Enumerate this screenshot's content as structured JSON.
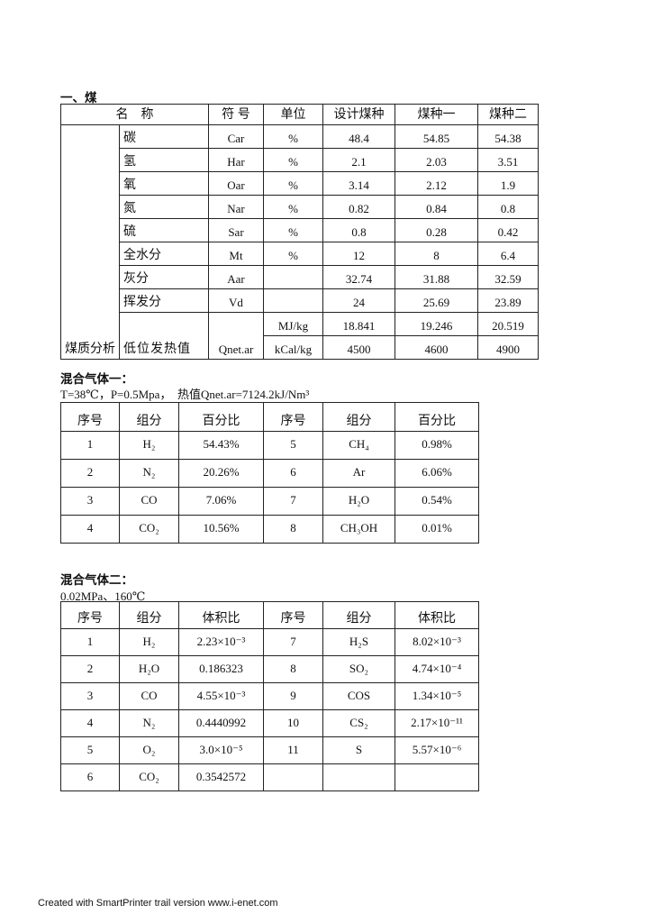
{
  "coal": {
    "section_title": "一、煤",
    "headers": [
      "名　称",
      "符 号",
      "单位",
      "设计煤种",
      "煤种一",
      "煤种二"
    ],
    "group_label": "煤质分析",
    "rows": [
      {
        "name": "碳",
        "symbol": "Car",
        "unit": "%",
        "design": "48.4",
        "coal1": "54.85",
        "coal2": "54.38"
      },
      {
        "name": "氢",
        "symbol": "Har",
        "unit": "%",
        "design": "2.1",
        "coal1": "2.03",
        "coal2": "3.51"
      },
      {
        "name": "氧",
        "symbol": "Oar",
        "unit": "%",
        "design": "3.14",
        "coal1": "2.12",
        "coal2": "1.9"
      },
      {
        "name": "氮",
        "symbol": "Nar",
        "unit": "%",
        "design": "0.82",
        "coal1": "0.84",
        "coal2": "0.8"
      },
      {
        "name": "硫",
        "symbol": "Sar",
        "unit": "%",
        "design": "0.8",
        "coal1": "0.28",
        "coal2": "0.42"
      },
      {
        "name": "全水分",
        "symbol": "Mt",
        "unit": "%",
        "design": "12",
        "coal1": "8",
        "coal2": "6.4"
      },
      {
        "name": "灰分",
        "symbol": "Aar",
        "unit": "",
        "design": "32.74",
        "coal1": "31.88",
        "coal2": "32.59"
      },
      {
        "name": "挥发分",
        "symbol": "Vd",
        "unit": "",
        "design": "24",
        "coal1": "25.69",
        "coal2": "23.89"
      }
    ],
    "heat": {
      "name": "低位发热值",
      "symbol": "Qnet.ar",
      "rows": [
        {
          "unit": "MJ/kg",
          "design": "18.841",
          "coal1": "19.246",
          "coal2": "20.519"
        },
        {
          "unit": "kCal/kg",
          "design": "4500",
          "coal1": "4600",
          "coal2": "4900"
        }
      ]
    }
  },
  "gas1": {
    "title": "混合气体一：",
    "conditions": "T=38℃，P=0.5Mpa，　热值Qnet.ar=7124.2kJ/Nm³",
    "headers": [
      "序号",
      "组分",
      "百分比",
      "序号",
      "组分",
      "百分比"
    ],
    "rows": [
      [
        "1",
        "H₂",
        "54.43%",
        "5",
        "CH₄",
        "0.98%"
      ],
      [
        "2",
        "N₂",
        "20.26%",
        "6",
        "Ar",
        "6.06%"
      ],
      [
        "3",
        "CO",
        "7.06%",
        "7",
        "H₂O",
        "0.54%"
      ],
      [
        "4",
        "CO₂",
        "10.56%",
        "8",
        "CH₃OH",
        "0.01%"
      ]
    ]
  },
  "gas2": {
    "title": "混合气体二：",
    "conditions": "0.02MPa、160℃",
    "headers": [
      "序号",
      "组分",
      "体积比",
      "序号",
      "组分",
      "体积比"
    ],
    "rows": [
      [
        "1",
        "H₂",
        "2.23×10⁻³",
        "7",
        "H₂S",
        "8.02×10⁻³"
      ],
      [
        "2",
        "H₂O",
        "0.186323",
        "8",
        "SO₂",
        "4.74×10⁻⁴"
      ],
      [
        "3",
        "CO",
        "4.55×10⁻³",
        "9",
        "COS",
        "1.34×10⁻⁵"
      ],
      [
        "4",
        "N₂",
        "0.4440992",
        "10",
        "CS₂",
        "2.17×10⁻¹¹"
      ],
      [
        "5",
        "O₂",
        "3.0×10⁻⁵",
        "11",
        "S",
        "5.57×10⁻⁶"
      ],
      [
        "6",
        "CO₂",
        "0.3542572",
        "",
        "",
        ""
      ]
    ]
  },
  "footer": "Created with SmartPrinter trail version www.i-enet.com"
}
